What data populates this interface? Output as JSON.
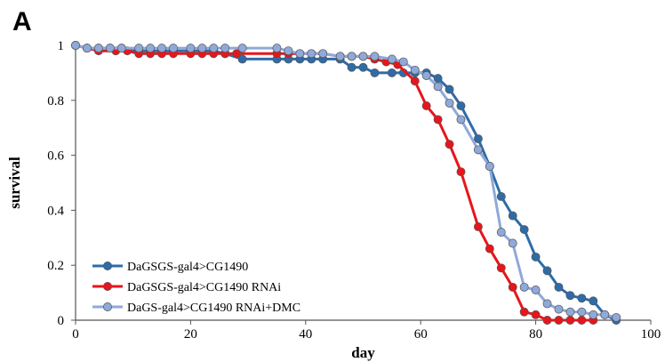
{
  "panel_label": "A",
  "chart_data": {
    "type": "line",
    "xlabel": "day",
    "ylabel": "survival",
    "xlim": [
      0,
      100
    ],
    "ylim": [
      0,
      1
    ],
    "x_ticks": [
      0,
      20,
      40,
      60,
      80,
      100
    ],
    "y_ticks": [
      0,
      0.2,
      0.4,
      0.6,
      0.8,
      1
    ],
    "y_tick_labels": [
      "0",
      "0.2",
      "0.4",
      "0.6",
      "0.8",
      "1"
    ],
    "grid": false,
    "legend_position": "bottom-left",
    "series": [
      {
        "name": "DaGSGS-gal4>CG1490",
        "color": "#2e6ca8",
        "x": [
          0,
          2,
          4,
          6,
          8,
          11,
          13,
          15,
          17,
          20,
          22,
          24,
          26,
          29,
          35,
          37,
          39,
          41,
          43,
          46,
          48,
          50,
          52,
          55,
          57,
          59,
          61,
          63,
          65,
          67,
          70,
          72,
          74,
          76,
          78,
          80,
          82,
          84,
          86,
          88,
          90,
          92,
          94
        ],
        "y": [
          1,
          0.99,
          0.99,
          0.99,
          0.99,
          0.98,
          0.98,
          0.98,
          0.98,
          0.98,
          0.98,
          0.98,
          0.97,
          0.95,
          0.95,
          0.95,
          0.95,
          0.95,
          0.95,
          0.95,
          0.92,
          0.92,
          0.9,
          0.9,
          0.9,
          0.9,
          0.9,
          0.88,
          0.84,
          0.78,
          0.66,
          0.56,
          0.45,
          0.38,
          0.33,
          0.23,
          0.18,
          0.12,
          0.09,
          0.08,
          0.07,
          0.02,
          0
        ]
      },
      {
        "name": "DaGSGS-gal4>CG1490 RNAi",
        "color": "#e8151b",
        "x": [
          0,
          2,
          4,
          7,
          9,
          11,
          13,
          15,
          17,
          20,
          22,
          24,
          26,
          28,
          35,
          37,
          39,
          41,
          43,
          46,
          48,
          50,
          52,
          54,
          56,
          59,
          61,
          63,
          65,
          67,
          70,
          72,
          74,
          76,
          78,
          80,
          82,
          84,
          86,
          88,
          90
        ],
        "y": [
          1,
          0.99,
          0.98,
          0.98,
          0.98,
          0.97,
          0.97,
          0.97,
          0.97,
          0.97,
          0.97,
          0.97,
          0.97,
          0.97,
          0.97,
          0.97,
          0.97,
          0.97,
          0.97,
          0.96,
          0.96,
          0.96,
          0.95,
          0.94,
          0.93,
          0.87,
          0.78,
          0.73,
          0.64,
          0.54,
          0.34,
          0.26,
          0.19,
          0.12,
          0.03,
          0.02,
          0,
          0,
          0,
          0,
          0
        ]
      },
      {
        "name": "DaGS-gal4>CG1490 RNAi+DMC",
        "color": "#8fa9d9",
        "x": [
          0,
          2,
          4,
          6,
          8,
          11,
          13,
          15,
          17,
          20,
          22,
          24,
          26,
          29,
          35,
          37,
          39,
          41,
          43,
          46,
          48,
          50,
          52,
          55,
          57,
          59,
          61,
          63,
          65,
          67,
          70,
          72,
          74,
          76,
          78,
          80,
          82,
          84,
          86,
          88,
          90,
          92,
          94
        ],
        "y": [
          1,
          0.99,
          0.99,
          0.99,
          0.99,
          0.99,
          0.99,
          0.99,
          0.99,
          0.99,
          0.99,
          0.99,
          0.99,
          0.99,
          0.99,
          0.98,
          0.97,
          0.97,
          0.97,
          0.96,
          0.96,
          0.96,
          0.96,
          0.95,
          0.94,
          0.91,
          0.89,
          0.85,
          0.79,
          0.73,
          0.62,
          0.56,
          0.32,
          0.28,
          0.12,
          0.11,
          0.06,
          0.04,
          0.03,
          0.03,
          0.02,
          0.02,
          0.01
        ]
      }
    ]
  }
}
